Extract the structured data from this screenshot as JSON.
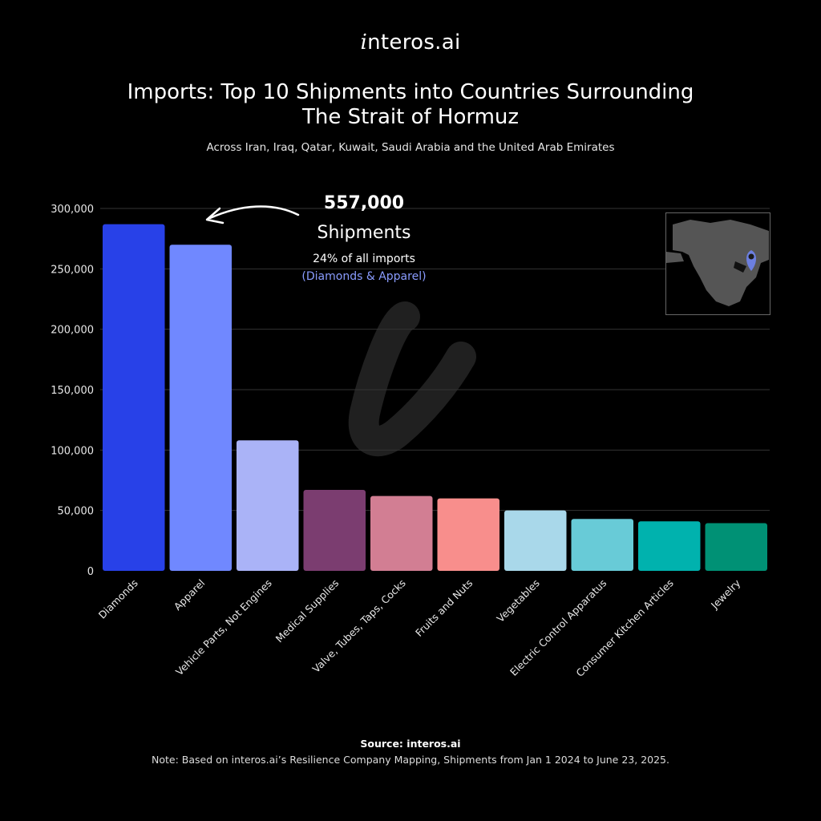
{
  "brand": {
    "prefix": "i",
    "rest": "nteros.ai"
  },
  "title": {
    "line1": "Imports: Top 10 Shipments into Countries Surrounding",
    "line2": "The Strait of Hormuz"
  },
  "subtitle": "Across Iran, Iraq, Qatar, Kuwait, Saudi Arabia and the United Arab Emirates",
  "annotation": {
    "value": "557,000",
    "unit": "Shipments",
    "percent": "24% of all imports",
    "categories": "(Diamonds & Apparel)"
  },
  "source": "Source: interos.ai",
  "note": "Note: Based on interos.ai’s Resilience Company Mapping, Shipments from Jan 1 2024 to June 23, 2025.",
  "icons": {
    "map": "middle-east-map-icon",
    "pin": "location-pin-icon",
    "watermark": "interos-i-watermark-icon"
  },
  "chart_data": {
    "type": "bar",
    "categories": [
      "Diamonds",
      "Apparel",
      "Vehicle Parts, Not Engines",
      "Medical Supplies",
      "Valve, Tubes, Taps, Cocks",
      "Fruits and Nuts",
      "Vegetables",
      "Electric Control Apparatus",
      "Consumer Kitchen Articles",
      "Jewelry"
    ],
    "values": [
      287000,
      270000,
      108000,
      67000,
      62000,
      60000,
      50000,
      43000,
      41000,
      39500
    ],
    "colors": [
      "#2841e8",
      "#7088ff",
      "#aab3f7",
      "#7b3d70",
      "#d27e93",
      "#f88e8c",
      "#a9d8ea",
      "#68cbd7",
      "#00b2ae",
      "#009175"
    ],
    "ylim": [
      0,
      300000
    ],
    "yticks": [
      "0",
      "50,000",
      "100,000",
      "150,000",
      "200,000",
      "250,000",
      "300,000"
    ],
    "grid": true
  }
}
